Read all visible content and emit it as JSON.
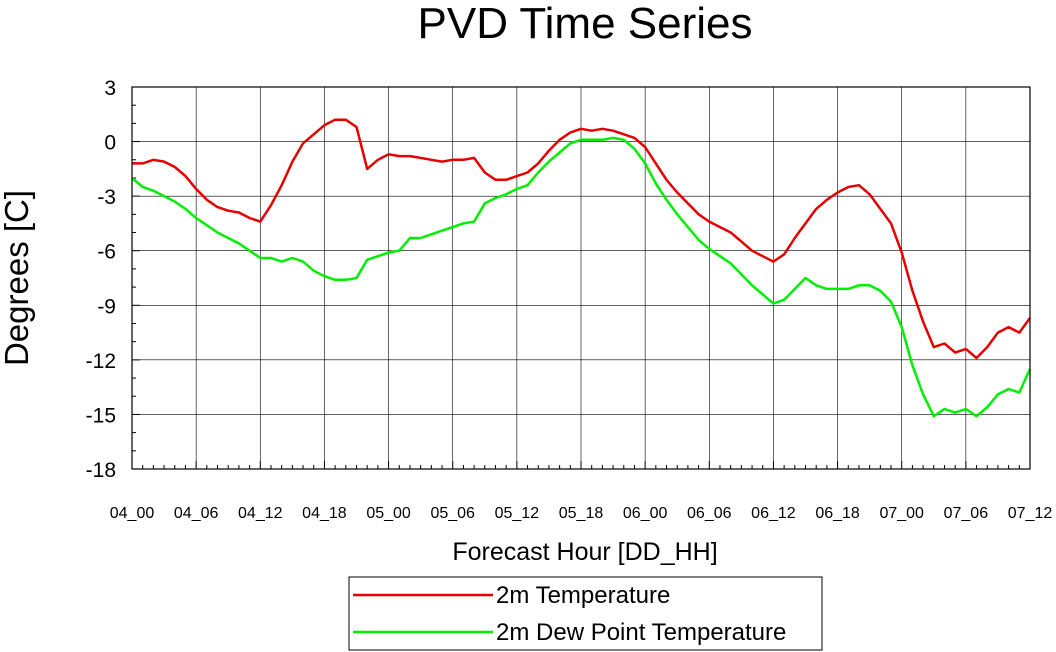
{
  "chart_data": {
    "type": "line",
    "title": "PVD Time Series",
    "xlabel": "Forecast Hour [DD_HH]",
    "ylabel": "Degrees [C]",
    "ylim": [
      -18,
      3
    ],
    "yticks": [
      3,
      0,
      -3,
      -6,
      -9,
      -12,
      -15,
      -18
    ],
    "x_tick_labels": [
      "04_00",
      "04_06",
      "04_12",
      "04_18",
      "05_00",
      "05_06",
      "05_12",
      "05_18",
      "06_00",
      "06_06",
      "06_12",
      "06_18",
      "07_00",
      "07_06",
      "07_12"
    ],
    "x_hours": [
      0,
      1,
      2,
      3,
      4,
      5,
      6,
      7,
      8,
      9,
      10,
      11,
      12,
      13,
      14,
      15,
      16,
      17,
      18,
      19,
      20,
      21,
      22,
      23,
      24,
      25,
      26,
      27,
      28,
      29,
      30,
      31,
      32,
      33,
      34,
      35,
      36,
      37,
      38,
      39,
      40,
      41,
      42,
      43,
      44,
      45,
      46,
      47,
      48,
      49,
      50,
      51,
      52,
      53,
      54,
      55,
      56,
      57,
      58,
      59,
      60,
      61,
      62,
      63,
      64,
      65,
      66,
      67,
      68,
      69,
      70,
      71,
      72,
      73,
      74,
      75,
      76,
      77,
      78,
      79,
      80,
      81,
      82,
      83,
      84
    ],
    "grid": true,
    "legend_position": "bottom-center",
    "series": [
      {
        "name": "2m Temperature",
        "color": "#e60000",
        "values": [
          -1.2,
          -1.2,
          -1.0,
          -1.1,
          -1.4,
          -1.9,
          -2.6,
          -3.2,
          -3.6,
          -3.8,
          -3.9,
          -4.2,
          -4.4,
          -3.5,
          -2.4,
          -1.1,
          -0.1,
          0.4,
          0.9,
          1.2,
          1.2,
          0.8,
          -1.5,
          -1.0,
          -0.7,
          -0.8,
          -0.8,
          -0.9,
          -1.0,
          -1.1,
          -1.0,
          -1.0,
          -0.9,
          -1.7,
          -2.1,
          -2.1,
          -1.9,
          -1.7,
          -1.2,
          -0.5,
          0.1,
          0.5,
          0.7,
          0.6,
          0.7,
          0.6,
          0.4,
          0.2,
          -0.3,
          -1.2,
          -2.1,
          -2.8,
          -3.4,
          -4.0,
          -4.4,
          -4.7,
          -5.0,
          -5.5,
          -6.0,
          -6.3,
          -6.6,
          -6.2,
          -5.3,
          -4.5,
          -3.7,
          -3.2,
          -2.8,
          -2.5,
          -2.4,
          -2.9,
          -3.7,
          -4.5,
          -6.1,
          -8.2,
          -9.9,
          -11.3,
          -11.1,
          -11.6,
          -11.4,
          -11.9,
          -11.3,
          -10.5,
          -10.2,
          -10.5,
          -9.7
        ]
      },
      {
        "name": "2m Dew Point Temperature",
        "color": "#00ee00",
        "values": [
          -2.0,
          -2.5,
          -2.7,
          -3.0,
          -3.3,
          -3.7,
          -4.2,
          -4.6,
          -5.0,
          -5.3,
          -5.6,
          -6.0,
          -6.4,
          -6.4,
          -6.6,
          -6.4,
          -6.6,
          -7.1,
          -7.4,
          -7.6,
          -7.6,
          -7.5,
          -6.5,
          -6.3,
          -6.1,
          -6.0,
          -5.3,
          -5.3,
          -5.1,
          -4.9,
          -4.7,
          -4.5,
          -4.4,
          -3.4,
          -3.1,
          -2.9,
          -2.6,
          -2.4,
          -1.7,
          -1.1,
          -0.6,
          -0.1,
          0.1,
          0.1,
          0.1,
          0.2,
          0.1,
          -0.4,
          -1.2,
          -2.3,
          -3.2,
          -4.0,
          -4.7,
          -5.4,
          -5.9,
          -6.3,
          -6.7,
          -7.3,
          -7.9,
          -8.4,
          -8.9,
          -8.7,
          -8.1,
          -7.5,
          -7.9,
          -8.1,
          -8.1,
          -8.1,
          -7.9,
          -7.9,
          -8.2,
          -8.8,
          -10.2,
          -12.3,
          -13.9,
          -15.1,
          -14.7,
          -14.9,
          -14.7,
          -15.1,
          -14.6,
          -13.9,
          -13.6,
          -13.8,
          -12.5
        ]
      }
    ]
  }
}
